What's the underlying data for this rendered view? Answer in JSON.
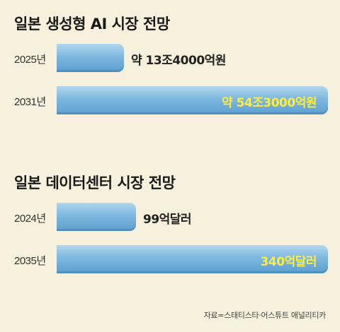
{
  "chart_data": [
    {
      "type": "bar",
      "orientation": "horizontal",
      "title": "일본 생성형 AI 시장 전망",
      "categories": [
        "2025년",
        "2031년"
      ],
      "values": [
        13.4,
        54.3
      ],
      "value_labels": [
        "약 13조4000억원",
        "약 54조3000억원"
      ]
    },
    {
      "type": "bar",
      "orientation": "horizontal",
      "title": "일본 데이터센터 시장 전망",
      "categories": [
        "2024년",
        "2035년"
      ],
      "values": [
        99,
        340
      ],
      "value_labels": [
        "99억달러",
        "340억달러"
      ]
    }
  ],
  "source": "자료=스태티스타·어스튜트 애널리티카"
}
